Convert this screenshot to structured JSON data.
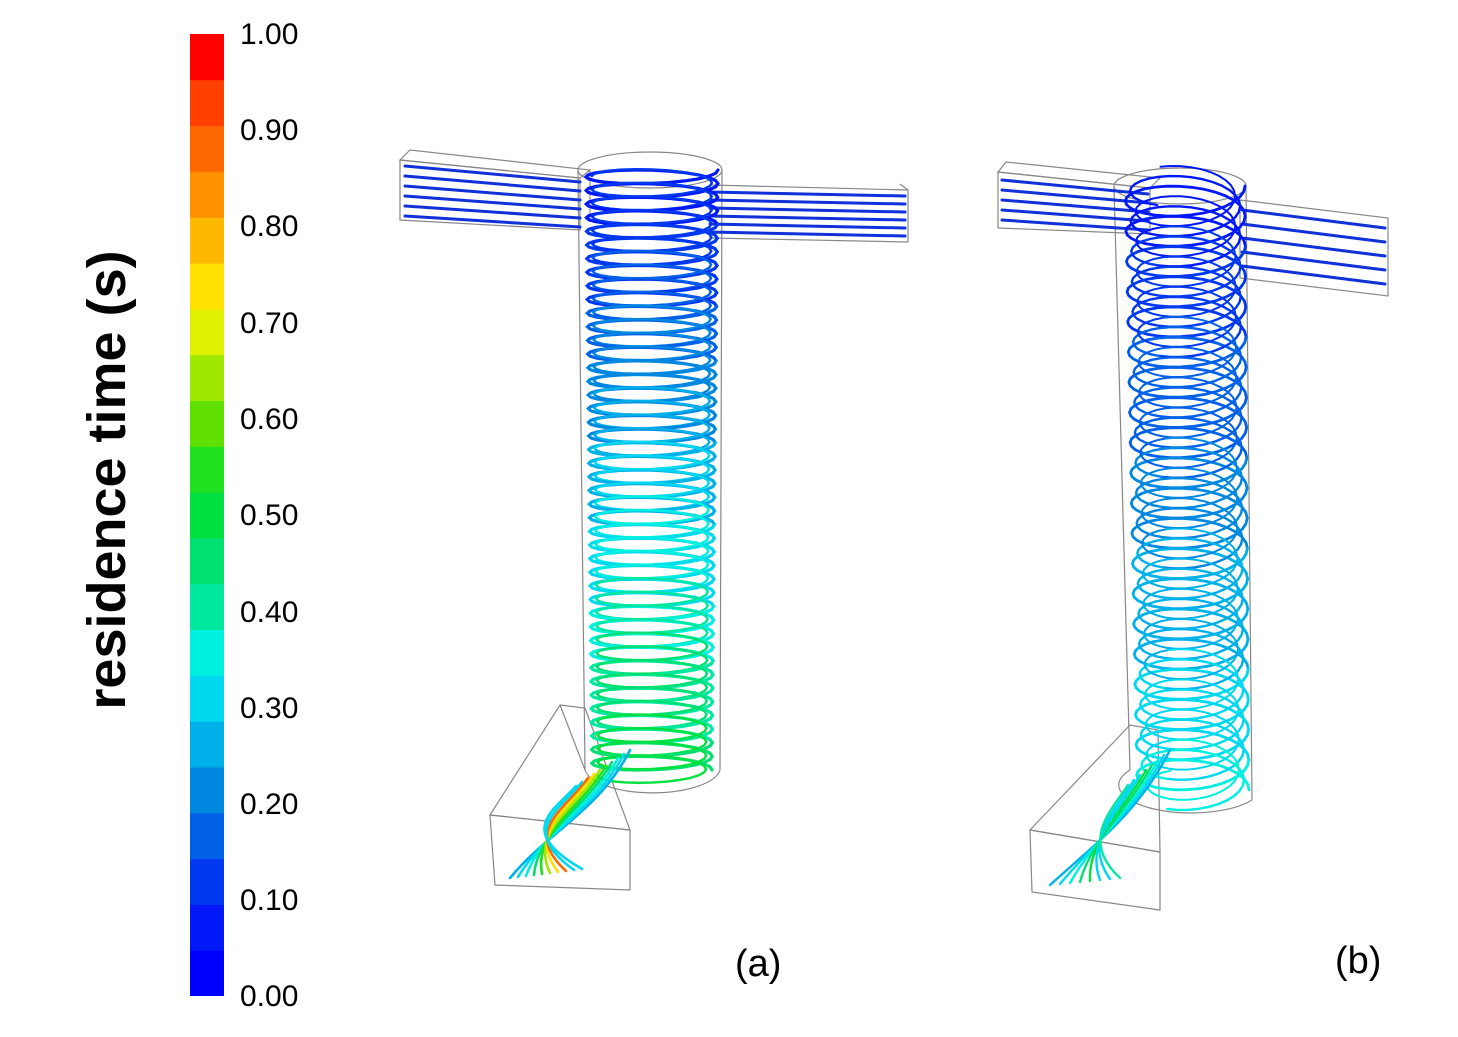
{
  "colorbar": {
    "title": "residence time (s)",
    "ticks": [
      "1.00",
      "0.90",
      "0.80",
      "0.70",
      "0.60",
      "0.50",
      "0.40",
      "0.30",
      "0.20",
      "0.10",
      "0.00"
    ],
    "bands": [
      "#0000ff",
      "#0018f8",
      "#0038f0",
      "#0060e8",
      "#0088e0",
      "#00b0e8",
      "#00d8f0",
      "#00f0e0",
      "#00e8a0",
      "#00e070",
      "#00e040",
      "#20e020",
      "#60e000",
      "#a0e800",
      "#e0f000",
      "#ffe000",
      "#ffb800",
      "#ff9000",
      "#ff6800",
      "#ff4000",
      "#ff0000"
    ]
  },
  "panels": [
    {
      "label": "(a)",
      "variant": "tight-helix"
    },
    {
      "label": "(b)",
      "variant": "loose-helix"
    }
  ]
}
